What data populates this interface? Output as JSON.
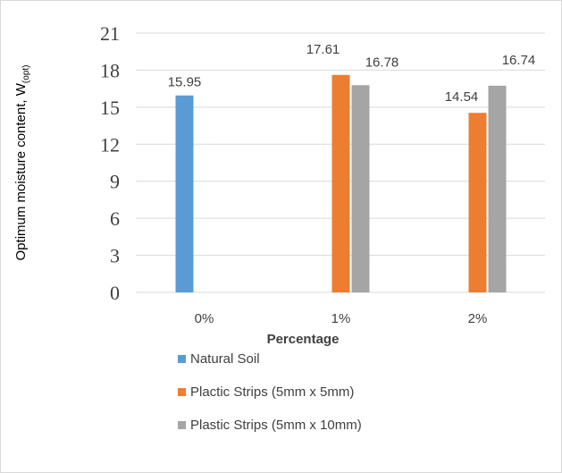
{
  "chart_data": {
    "type": "bar",
    "title": "",
    "xlabel": "Percentage",
    "ylabel": "Optimum moisture content, W",
    "ylabel_subscript": "(opt)",
    "categories": [
      "0%",
      "1%",
      "2%"
    ],
    "series": [
      {
        "name": "Natural Soil",
        "color": "#5b9bd5",
        "values": [
          15.95,
          null,
          null
        ]
      },
      {
        "name": "Plactic Strips (5mm x 5mm)",
        "color": "#ed7d31",
        "values": [
          null,
          17.61,
          14.54
        ]
      },
      {
        "name": "Plastic Strips (5mm x 10mm)",
        "color": "#a5a5a5",
        "values": [
          null,
          16.78,
          16.74
        ]
      }
    ],
    "data_labels": [
      {
        "category": "0%",
        "series": "Natural Soil",
        "text": "15.95"
      },
      {
        "category": "1%",
        "series": "Plactic Strips (5mm x 5mm)",
        "text": "17.61"
      },
      {
        "category": "1%",
        "series": "Plastic Strips (5mm x 10mm)",
        "text": "16.78"
      },
      {
        "category": "2%",
        "series": "Plactic Strips (5mm x 5mm)",
        "text": "14.54"
      },
      {
        "category": "2%",
        "series": "Plastic Strips (5mm x 10mm)",
        "text": "16.74"
      }
    ],
    "ylim": [
      0,
      21
    ],
    "yticks": [
      "0",
      "3",
      "6",
      "9",
      "12",
      "15",
      "18",
      "21"
    ],
    "grid": true,
    "legend_position": "bottom-left"
  }
}
